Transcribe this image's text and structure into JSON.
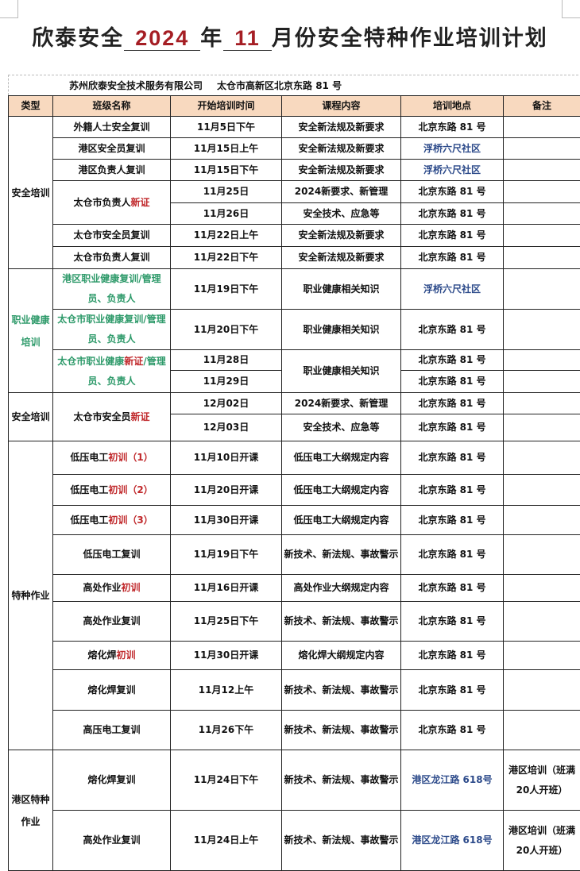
{
  "title": {
    "prefix": "欣泰安全",
    "year": "2024",
    "mid": "年",
    "month": "11",
    "suffix": "月份安全特种作业培训计划"
  },
  "company": "苏州欣泰安全技术服务有限公司",
  "address": "太仓市高新区北京东路 81 号",
  "headers": [
    "类型",
    "班级名称",
    "开始培训时间",
    "课程内容",
    "培训地点",
    "备注"
  ],
  "colors": {
    "header_bg": "#f8d9bf",
    "green": "#2e9a6a",
    "red": "#c0282b",
    "blue": "#2c4a8a"
  },
  "rows": [
    {
      "type": {
        "text": "安全培训",
        "span": 7
      },
      "name": {
        "segs": [
          [
            "外籍人士安全复训",
            ""
          ]
        ]
      },
      "time": "11月5日下午",
      "content": "安全新法规及新要求",
      "loc": "北京东路 81 号"
    },
    {
      "name": {
        "segs": [
          [
            "港区安全员复训",
            ""
          ]
        ]
      },
      "time": "11月15日上午",
      "content": "安全新法规及新要求",
      "loc": "浮桥六尺社区",
      "loc_color": "blue"
    },
    {
      "name": {
        "segs": [
          [
            "港区负责人复训",
            ""
          ]
        ]
      },
      "time": "11月15日下午",
      "content": "安全新法规及新要求",
      "loc": "浮桥六尺社区",
      "loc_color": "blue"
    },
    {
      "name": {
        "segs": [
          [
            "太仓市负责人",
            ""
          ],
          [
            "新证",
            "red"
          ]
        ],
        "span": 2
      },
      "time": "11月25日",
      "content": "2024新要求、新管理",
      "loc": "北京东路 81 号"
    },
    {
      "time": "11月26日",
      "content": "安全技术、应急等",
      "loc": "北京东路 81 号"
    },
    {
      "name": {
        "segs": [
          [
            "太仓市安全员复训",
            ""
          ]
        ]
      },
      "time": "11月22日上午",
      "content": "安全新法规及新要求",
      "loc": "北京东路 81 号"
    },
    {
      "name": {
        "segs": [
          [
            "太仓市负责人复训",
            ""
          ]
        ]
      },
      "time": "11月22日下午",
      "content": "安全新法规及新要求",
      "loc": "北京东路 81 号"
    },
    {
      "type": {
        "text": "职业健康培训",
        "span": 4,
        "color": "green"
      },
      "name": {
        "segs": [
          [
            "港区职业健康复训/管理员、负责人",
            "green"
          ]
        ]
      },
      "time": "11月19日下午",
      "content": "职业健康相关知识",
      "loc": "浮桥六尺社区",
      "loc_color": "blue"
    },
    {
      "name": {
        "segs": [
          [
            "太仓市职业健康复训/管理员、负责人",
            "green"
          ]
        ]
      },
      "time": "11月20日下午",
      "content": "职业健康相关知识",
      "loc": "北京东路 81 号"
    },
    {
      "name": {
        "segs": [
          [
            "太仓市职业健康",
            "green"
          ],
          [
            "新证",
            "red"
          ],
          [
            "/管理员、负责人",
            "green"
          ]
        ],
        "span": 2
      },
      "time": "11月28日",
      "content": "职业健康相关知识",
      "content_span": 2,
      "loc": "北京东路 81 号"
    },
    {
      "time": "11月29日",
      "loc": "北京东路 81 号"
    },
    {
      "type": {
        "text": "安全培训",
        "span": 2
      },
      "name": {
        "segs": [
          [
            "太仓市安全员",
            ""
          ],
          [
            "新证",
            "red"
          ]
        ],
        "span": 2
      },
      "time": "12月02日",
      "content": "2024新要求、新管理",
      "loc": "北京东路 81 号"
    },
    {
      "time": "12月03日",
      "content": "安全技术、应急等",
      "loc": "北京东路 81 号"
    },
    {
      "type": {
        "text": "特种作业",
        "span": 9
      },
      "name": {
        "segs": [
          [
            "低压电工",
            ""
          ],
          [
            "初训（1）",
            "red"
          ]
        ]
      },
      "time": "11月10日开课",
      "content": "低压电工大纲规定内容",
      "loc": "北京东路 81 号"
    },
    {
      "name": {
        "segs": [
          [
            "低压电工",
            ""
          ],
          [
            "初训（2）",
            "red"
          ]
        ]
      },
      "time": "11月20日开课",
      "content": "低压电工大纲规定内容",
      "loc": "北京东路 81 号"
    },
    {
      "name": {
        "segs": [
          [
            "低压电工",
            ""
          ],
          [
            "初训（3）",
            "red"
          ]
        ]
      },
      "time": "11月30日开课",
      "content": "低压电工大纲规定内容",
      "loc": "北京东路 81 号"
    },
    {
      "name": {
        "segs": [
          [
            "低压电工复训",
            ""
          ]
        ]
      },
      "time": "11月19日下午",
      "content": "新技术、新法规、事故警示",
      "loc": "北京东路 81 号"
    },
    {
      "name": {
        "segs": [
          [
            "高处作业",
            ""
          ],
          [
            "初训",
            "red"
          ]
        ]
      },
      "time": "11月16日开课",
      "content": "高处作业大纲规定内容",
      "loc": "北京东路 81 号"
    },
    {
      "name": {
        "segs": [
          [
            "高处作业复训",
            ""
          ]
        ]
      },
      "time": "11月25日下午",
      "content": "新技术、新法规、事故警示",
      "loc": "北京东路 81 号"
    },
    {
      "name": {
        "segs": [
          [
            "熔化焊",
            ""
          ],
          [
            "初训",
            "red"
          ]
        ]
      },
      "time": "11月30日开课",
      "content": "熔化焊大纲规定内容",
      "loc": "北京东路 81 号"
    },
    {
      "name": {
        "segs": [
          [
            "熔化焊复训",
            ""
          ]
        ]
      },
      "time": "11月12上午",
      "content": "新技术、新法规、事故警示",
      "loc": "北京东路 81 号"
    },
    {
      "name": {
        "segs": [
          [
            "高压电工复训",
            ""
          ]
        ]
      },
      "time": "11月26下午",
      "content": "新技术、新法规、事故警示",
      "loc": "北京东路 81 号"
    },
    {
      "type": {
        "text": "港区特种作业",
        "span": 2
      },
      "name": {
        "segs": [
          [
            "熔化焊复训",
            ""
          ]
        ]
      },
      "time": "11月24日下午",
      "content": "新技术、新法规、事故警示",
      "loc": "港区龙江路 618号",
      "loc_color": "blue",
      "note": "港区培训（班满20人开班）"
    },
    {
      "name": {
        "segs": [
          [
            "高处作业复训",
            ""
          ]
        ]
      },
      "time": "11月24日上午",
      "content": "新技术、新法规、事故警示",
      "loc": "港区龙江路 618号",
      "loc_color": "blue",
      "note": "港区培训（班满20人开班）"
    }
  ]
}
